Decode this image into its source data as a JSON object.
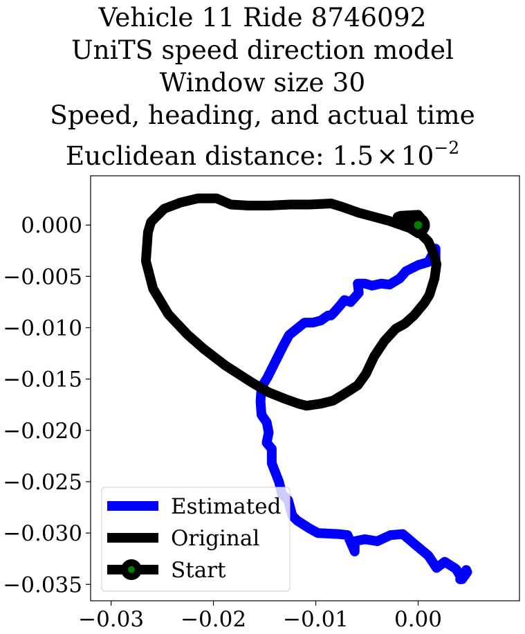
{
  "chart_data": {
    "type": "line",
    "title_lines": [
      "Vehicle 11 Ride 8746092",
      "UniTS speed direction model",
      "Window size 30",
      "Speed, heading, and actual time"
    ],
    "title_metric_label": "Euclidean distance: ",
    "title_metric_mantissa": "1.5",
    "title_metric_times": "×",
    "title_metric_base": "10",
    "title_metric_exponent": "−2",
    "xlim": [
      -0.032,
      0.0099
    ],
    "ylim": [
      -0.0366,
      0.0048
    ],
    "x_ticks": [
      -0.03,
      -0.02,
      -0.01,
      0.0
    ],
    "x_tick_labels": [
      "−0.03",
      "−0.02",
      "−0.01",
      "0.00"
    ],
    "y_ticks": [
      0.0,
      -0.005,
      -0.01,
      -0.015,
      -0.02,
      -0.025,
      -0.03,
      -0.035
    ],
    "y_tick_labels": [
      "0.000",
      "−0.005",
      "−0.010",
      "−0.015",
      "−0.020",
      "−0.025",
      "−0.030",
      "−0.035"
    ],
    "legend_position": "lower left",
    "series": [
      {
        "name": "Estimated",
        "color": "#0000ff",
        "x": [
          0.0017,
          0.0017,
          0.001,
          0.0,
          -0.0012,
          -0.0018,
          -0.0028,
          -0.0036,
          -0.0045,
          -0.0052,
          -0.0059,
          -0.0058,
          -0.0066,
          -0.0072,
          -0.0076,
          -0.0083,
          -0.0085,
          -0.0088,
          -0.0095,
          -0.0103,
          -0.0111,
          -0.0126,
          -0.0132,
          -0.0138,
          -0.0143,
          -0.0147,
          -0.0153,
          -0.0154,
          -0.0153,
          -0.0148,
          -0.0146,
          -0.0148,
          -0.0143,
          -0.0143,
          -0.0136,
          -0.0133,
          -0.0127,
          -0.0123,
          -0.0118,
          -0.0107,
          -0.0098,
          -0.0078,
          -0.0069,
          -0.0062,
          -0.0062,
          -0.0052,
          -0.004,
          -0.0027,
          -0.0015,
          -0.0002,
          0.001,
          0.0018,
          0.0026,
          0.0037,
          0.0043,
          0.0048,
          0.0041,
          0.0047
        ],
        "y": [
          -0.0035,
          -0.0023,
          -0.0036,
          -0.0039,
          -0.0045,
          -0.0052,
          -0.0058,
          -0.0057,
          -0.0059,
          -0.0057,
          -0.0057,
          -0.0066,
          -0.0075,
          -0.0073,
          -0.0078,
          -0.0086,
          -0.0088,
          -0.0088,
          -0.0093,
          -0.0095,
          -0.0095,
          -0.0107,
          -0.0118,
          -0.013,
          -0.014,
          -0.0148,
          -0.0158,
          -0.0172,
          -0.0185,
          -0.0192,
          -0.0202,
          -0.0212,
          -0.0218,
          -0.0232,
          -0.025,
          -0.0262,
          -0.0268,
          -0.0283,
          -0.0288,
          -0.0295,
          -0.03,
          -0.0301,
          -0.0302,
          -0.0318,
          -0.0308,
          -0.0306,
          -0.0308,
          -0.0302,
          -0.0301,
          -0.0312,
          -0.0322,
          -0.0334,
          -0.0328,
          -0.0335,
          -0.0345,
          -0.0338,
          -0.0345,
          -0.0336
        ]
      },
      {
        "name": "Original",
        "color": "#000000",
        "x": [
          0.0,
          0.0004,
          0.001,
          0.0014,
          0.0018,
          0.0016,
          0.0011,
          0.0006,
          -0.0004,
          -0.0013,
          -0.0022,
          -0.0033,
          -0.0043,
          -0.0051,
          -0.0059,
          -0.0073,
          -0.0083,
          -0.0095,
          -0.0109,
          -0.0117,
          -0.0131,
          -0.0146,
          -0.0163,
          -0.0188,
          -0.0209,
          -0.0225,
          -0.0244,
          -0.0259,
          -0.0266,
          -0.0264,
          -0.0261,
          -0.0248,
          -0.0232,
          -0.0215,
          -0.0197,
          -0.0183,
          -0.0166,
          -0.0146,
          -0.0125,
          -0.0106,
          -0.0085,
          -0.0075,
          -0.0058,
          -0.0028,
          -0.0008,
          0.0,
          -0.0008,
          -0.002,
          -0.0017,
          0.0,
          0.0005
        ],
        "y": [
          0.0,
          -0.001,
          -0.0016,
          -0.0025,
          -0.0038,
          -0.0052,
          -0.0068,
          -0.0076,
          -0.0088,
          -0.0096,
          -0.0101,
          -0.0113,
          -0.0128,
          -0.0145,
          -0.0156,
          -0.0165,
          -0.0171,
          -0.0174,
          -0.0176,
          -0.0174,
          -0.0169,
          -0.0163,
          -0.0153,
          -0.0137,
          -0.0121,
          -0.0107,
          -0.0087,
          -0.0062,
          -0.0035,
          -0.0007,
          0.0003,
          0.0016,
          0.0022,
          0.0026,
          0.0026,
          0.002,
          0.0019,
          0.0019,
          0.002,
          0.002,
          0.0021,
          0.0018,
          0.0012,
          0.0004,
          -0.0003,
          -0.0008,
          -0.0001,
          0.0008,
          0.0009,
          0.001,
          0.0004
        ]
      }
    ],
    "start_point": {
      "name": "Start",
      "x": 0.0,
      "y": 0.0,
      "marker_color": "#008000",
      "ring_color": "#000000"
    }
  }
}
